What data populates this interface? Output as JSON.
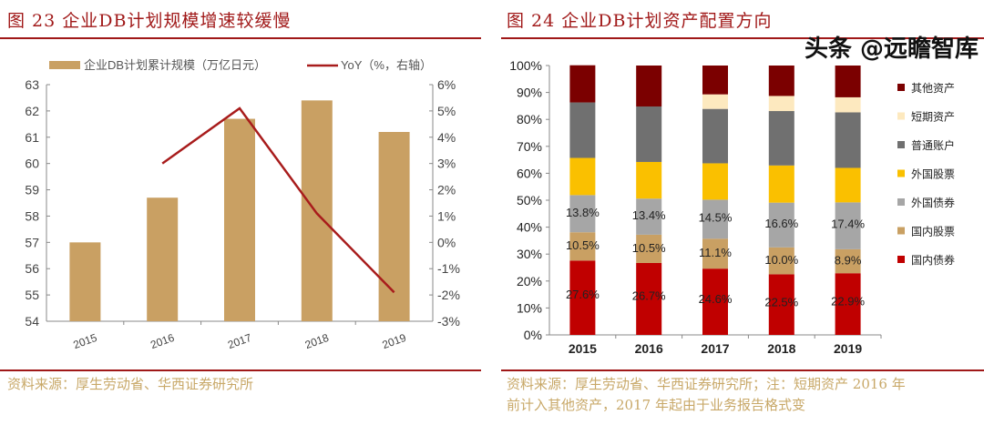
{
  "left": {
    "title": "图 23   企业DB计划规模增速较缓慢",
    "source": "资料来源：厚生劳动省、华西证券研究所"
  },
  "right": {
    "title": "图 24   企业DB计划资产配置方向",
    "source_line1": "资料来源：厚生劳动省、华西证券研究所；注：短期资产 2016 年",
    "source_line2": "前计入其他资产，2017 年起由于业务报告格式变"
  },
  "watermark": "头条 @远瞻智库",
  "colors": {
    "accent": "#a01818",
    "bar": "#c9a063",
    "line": "#a81c1c"
  },
  "chart_data": [
    {
      "type": "bar",
      "categories": [
        "2015",
        "2016",
        "2017",
        "2018",
        "2019"
      ],
      "series": [
        {
          "name": "企业DB计划累计规模（万亿日元）",
          "type": "bar",
          "axis": "left",
          "values": [
            57.0,
            58.7,
            61.7,
            62.4,
            61.2
          ],
          "color": "#c9a063"
        },
        {
          "name": "YoY（%，右轴）",
          "type": "line",
          "axis": "right",
          "values": [
            null,
            3.0,
            5.1,
            1.1,
            -1.9
          ],
          "color": "#a81c1c"
        }
      ],
      "ylim": [
        54,
        63
      ],
      "yticks": [
        "54",
        "55",
        "56",
        "57",
        "58",
        "59",
        "60",
        "61",
        "62",
        "63"
      ],
      "y2lim": [
        -3,
        6
      ],
      "y2ticks": [
        "-3%",
        "-2%",
        "-1%",
        "0%",
        "1%",
        "2%",
        "3%",
        "4%",
        "5%",
        "6%"
      ],
      "legend": "top",
      "grid": false
    },
    {
      "type": "bar",
      "stacked": true,
      "categories": [
        "2015",
        "2016",
        "2017",
        "2018",
        "2019"
      ],
      "series": [
        {
          "name": "国内债券",
          "color": "#c00000",
          "values": [
            27.6,
            26.7,
            24.6,
            22.5,
            22.9
          ],
          "labels": [
            "27.6%",
            "26.7%",
            "24.6%",
            "22.5%",
            "22.9%"
          ]
        },
        {
          "name": "国内股票",
          "color": "#c9a063",
          "values": [
            10.5,
            10.5,
            11.1,
            10.0,
            8.9
          ],
          "labels": [
            "10.5%",
            "10.5%",
            "11.1%",
            "10.0%",
            "8.9%"
          ]
        },
        {
          "name": "外国债券",
          "color": "#a6a6a6",
          "values": [
            13.8,
            13.4,
            14.5,
            16.6,
            17.4
          ],
          "labels": [
            "13.8%",
            "13.4%",
            "14.5%",
            "16.6%",
            "17.4%"
          ]
        },
        {
          "name": "外国股票",
          "color": "#fac000",
          "values": [
            13.8,
            13.6,
            13.5,
            13.8,
            12.8
          ]
        },
        {
          "name": "普通账户",
          "color": "#707070",
          "values": [
            20.6,
            20.6,
            20.2,
            20.2,
            20.6
          ]
        },
        {
          "name": "短期资产",
          "color": "#fde9bf",
          "values": [
            0,
            0,
            5.4,
            5.6,
            5.6
          ]
        },
        {
          "name": "其他资产",
          "color": "#7b0000",
          "values": [
            13.8,
            15.2,
            10.7,
            11.3,
            11.8
          ]
        }
      ],
      "ylim": [
        0,
        100
      ],
      "yticks": [
        "0%",
        "10%",
        "20%",
        "30%",
        "40%",
        "50%",
        "60%",
        "70%",
        "80%",
        "90%",
        "100%"
      ],
      "legend": "right",
      "grid": false
    }
  ]
}
